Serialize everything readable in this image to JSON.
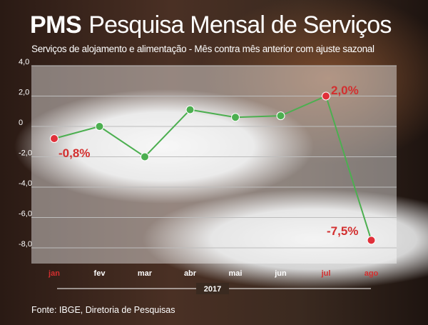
{
  "header": {
    "title_bold": "PMS",
    "title_rest": "Pesquisa Mensal de Serviços",
    "subtitle": "Serviços de alojamento e alimentação - Mês contra mês anterior com ajuste sazonal"
  },
  "source": "Fonte: IBGE, Diretoria de Pesquisas",
  "chart_data": {
    "type": "line",
    "categories": [
      "jan",
      "fev",
      "mar",
      "abr",
      "mai",
      "jun",
      "jul",
      "ago"
    ],
    "values": [
      -0.8,
      0.0,
      -2.0,
      1.1,
      0.6,
      0.7,
      2.0,
      -7.5
    ],
    "ylim": [
      -8.0,
      4.0
    ],
    "yticks": [
      "4,0",
      "2,0",
      "0",
      "-2,0",
      "-4,0",
      "-6,0",
      "-8,0"
    ],
    "ytick_values": [
      4,
      2,
      0,
      -2,
      -4,
      -6,
      -8
    ],
    "xlabel": "2017",
    "grid": true,
    "highlight_indices": [
      0,
      6,
      7
    ],
    "annotations": [
      {
        "index": 0,
        "text": "-0,8%"
      },
      {
        "index": 6,
        "text": "2,0%"
      },
      {
        "index": 7,
        "text": "-7,5%"
      }
    ],
    "colors": {
      "line": "#4caf50",
      "point": "#4caf50",
      "highlight": "#e0303a",
      "annotation": "#d32f2f",
      "grid": "#bdbdbd",
      "panel": "#ffffff"
    }
  }
}
